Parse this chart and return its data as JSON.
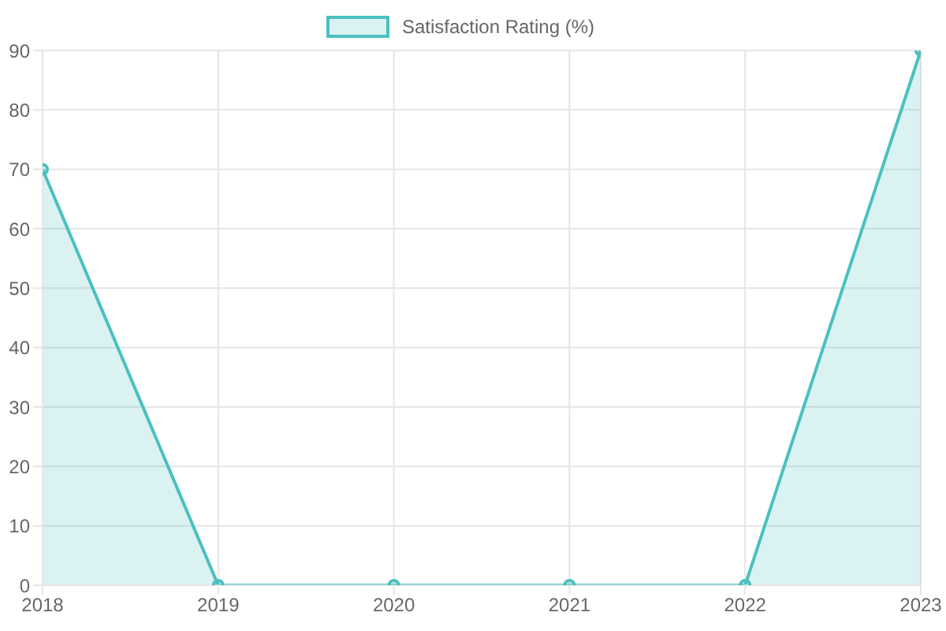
{
  "chart_data": {
    "type": "area",
    "categories": [
      "2018",
      "2019",
      "2020",
      "2021",
      "2022",
      "2023"
    ],
    "series": [
      {
        "name": "Satisfaction Rating (%)",
        "color": "#4bc0c0",
        "values": [
          70,
          0,
          0,
          0,
          0,
          90
        ]
      }
    ],
    "ylim": [
      0,
      90
    ],
    "yticks": [
      0,
      10,
      20,
      30,
      40,
      50,
      60,
      70,
      80,
      90
    ],
    "grid": true,
    "legend": "top",
    "marker": "circle"
  }
}
